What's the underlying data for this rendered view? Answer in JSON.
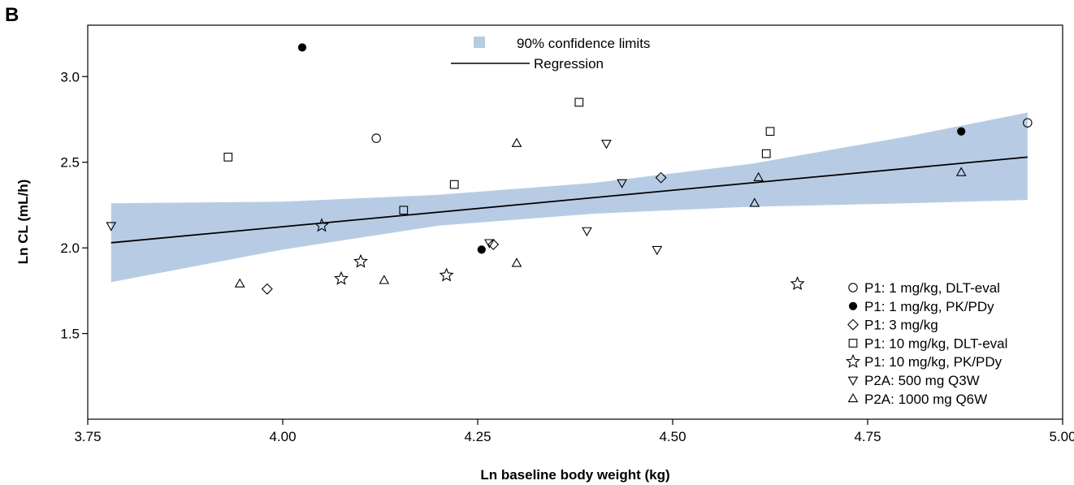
{
  "panel_label": "B",
  "colors": {
    "band_fill": "#b7cce4",
    "line": "#000000",
    "open_marker": "#000000",
    "filled_marker": "#000000"
  },
  "chart_data": {
    "type": "scatter",
    "xlabel": "Ln baseline body weight (kg)",
    "ylabel": "Ln CL (mL/h)",
    "xlim": [
      3.75,
      5.0
    ],
    "ylim": [
      1.0,
      3.3
    ],
    "xticks": [
      3.75,
      4.0,
      4.25,
      4.5,
      4.75,
      5.0
    ],
    "xtick_labels": [
      "3.75",
      "4.00",
      "4.25",
      "4.50",
      "4.75",
      "5.00"
    ],
    "yticks": [
      1.5,
      2.0,
      2.5,
      3.0
    ],
    "ytick_labels": [
      "1.5",
      "2.0",
      "2.5",
      "3.0"
    ],
    "grid": false,
    "top_legend": {
      "band_label": "90% confidence limits",
      "line_label": "Regression"
    },
    "regression": {
      "x": [
        3.78,
        4.955
      ],
      "y": [
        2.03,
        2.53
      ]
    },
    "confidence_band": {
      "x": [
        3.78,
        4.0,
        4.2,
        4.4,
        4.6,
        4.8,
        4.955
      ],
      "lower": [
        1.8,
        1.99,
        2.13,
        2.2,
        2.24,
        2.26,
        2.28
      ],
      "upper": [
        2.26,
        2.27,
        2.31,
        2.38,
        2.49,
        2.65,
        2.79
      ]
    },
    "legend_position": "bottom-right",
    "series": [
      {
        "name": "P1: 1 mg/kg, DLT-eval",
        "marker": "circle-open",
        "points": [
          [
            4.12,
            2.64
          ],
          [
            4.955,
            2.73
          ]
        ]
      },
      {
        "name": "P1: 1 mg/kg, PK/PDy",
        "marker": "circle-filled",
        "points": [
          [
            4.025,
            3.17
          ],
          [
            4.255,
            1.99
          ],
          [
            4.87,
            2.68
          ]
        ]
      },
      {
        "name": "P1: 3 mg/kg",
        "marker": "diamond-open",
        "points": [
          [
            3.98,
            1.76
          ],
          [
            4.27,
            2.02
          ],
          [
            4.485,
            2.41
          ]
        ]
      },
      {
        "name": "P1: 10 mg/kg, DLT-eval",
        "marker": "square-open",
        "points": [
          [
            3.93,
            2.53
          ],
          [
            4.155,
            2.22
          ],
          [
            4.22,
            2.37
          ],
          [
            4.38,
            2.85
          ],
          [
            4.62,
            2.55
          ],
          [
            4.625,
            2.68
          ]
        ]
      },
      {
        "name": "P1: 10 mg/kg, PK/PDy",
        "marker": "star-open",
        "points": [
          [
            4.05,
            2.13
          ],
          [
            4.075,
            1.82
          ],
          [
            4.1,
            1.92
          ],
          [
            4.21,
            1.84
          ],
          [
            4.66,
            1.79
          ]
        ]
      },
      {
        "name": "P2A: 500 mg Q3W",
        "marker": "triangle-down-open",
        "points": [
          [
            3.78,
            2.13
          ],
          [
            4.265,
            2.03
          ],
          [
            4.39,
            2.1
          ],
          [
            4.415,
            2.61
          ],
          [
            4.435,
            2.38
          ],
          [
            4.48,
            1.99
          ]
        ]
      },
      {
        "name": "P2A: 1000 mg Q6W",
        "marker": "triangle-up-open",
        "points": [
          [
            3.945,
            1.79
          ],
          [
            4.13,
            1.81
          ],
          [
            4.3,
            2.61
          ],
          [
            4.3,
            1.91
          ],
          [
            4.605,
            2.26
          ],
          [
            4.61,
            2.41
          ],
          [
            4.87,
            2.44
          ]
        ]
      }
    ]
  }
}
